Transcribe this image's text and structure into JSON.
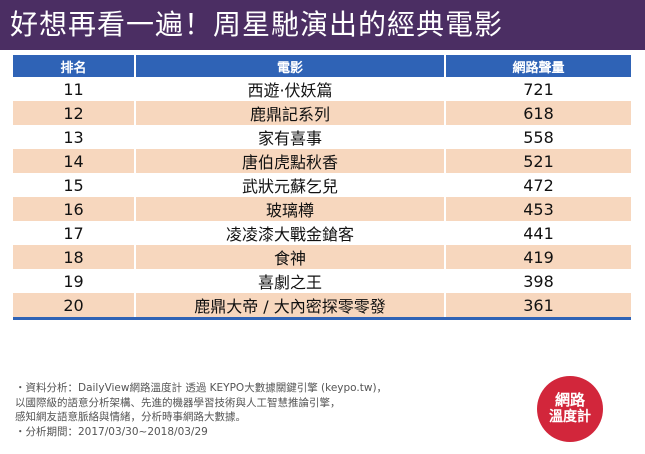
{
  "title": "好想再看一遍！周星馳演出的經典電影",
  "table": {
    "headers": [
      "排名",
      "電影",
      "網路聲量"
    ],
    "rows": [
      {
        "rank": "11",
        "movie": "西遊·伏妖篇",
        "volume": "721"
      },
      {
        "rank": "12",
        "movie": "鹿鼎記系列",
        "volume": "618"
      },
      {
        "rank": "13",
        "movie": "家有喜事",
        "volume": "558"
      },
      {
        "rank": "14",
        "movie": "唐伯虎點秋香",
        "volume": "521"
      },
      {
        "rank": "15",
        "movie": "武狀元蘇乞兒",
        "volume": "472"
      },
      {
        "rank": "16",
        "movie": "玻璃樽",
        "volume": "453"
      },
      {
        "rank": "17",
        "movie": "凌凌漆大戰金鎗客",
        "volume": "441"
      },
      {
        "rank": "18",
        "movie": "食神",
        "volume": "419"
      },
      {
        "rank": "19",
        "movie": "喜劇之王",
        "volume": "398"
      },
      {
        "rank": "20",
        "movie": "鹿鼎大帝 / 大內密探零零發",
        "volume": "361"
      }
    ]
  },
  "footnote": {
    "line1": "・資料分析：DailyView網路溫度計 透過 KEYPO大數據關鍵引擎 (keypo.tw)，",
    "line2": "以國際級的語意分析架構、先進的機器學習技術與人工智慧推論引擎，",
    "line3": "感知網友語意脈絡與情緒，分析時事網路大數據。",
    "line4": "・分析期間：2017/03/30~2018/03/29"
  },
  "logo": {
    "line1": "網路",
    "line2": "溫度計"
  },
  "colors": {
    "title_bg": "#4b2e63",
    "header_bg": "#2f63b6",
    "row_alt_bg": "#f7d7be",
    "logo_bg": "#d2263b"
  }
}
